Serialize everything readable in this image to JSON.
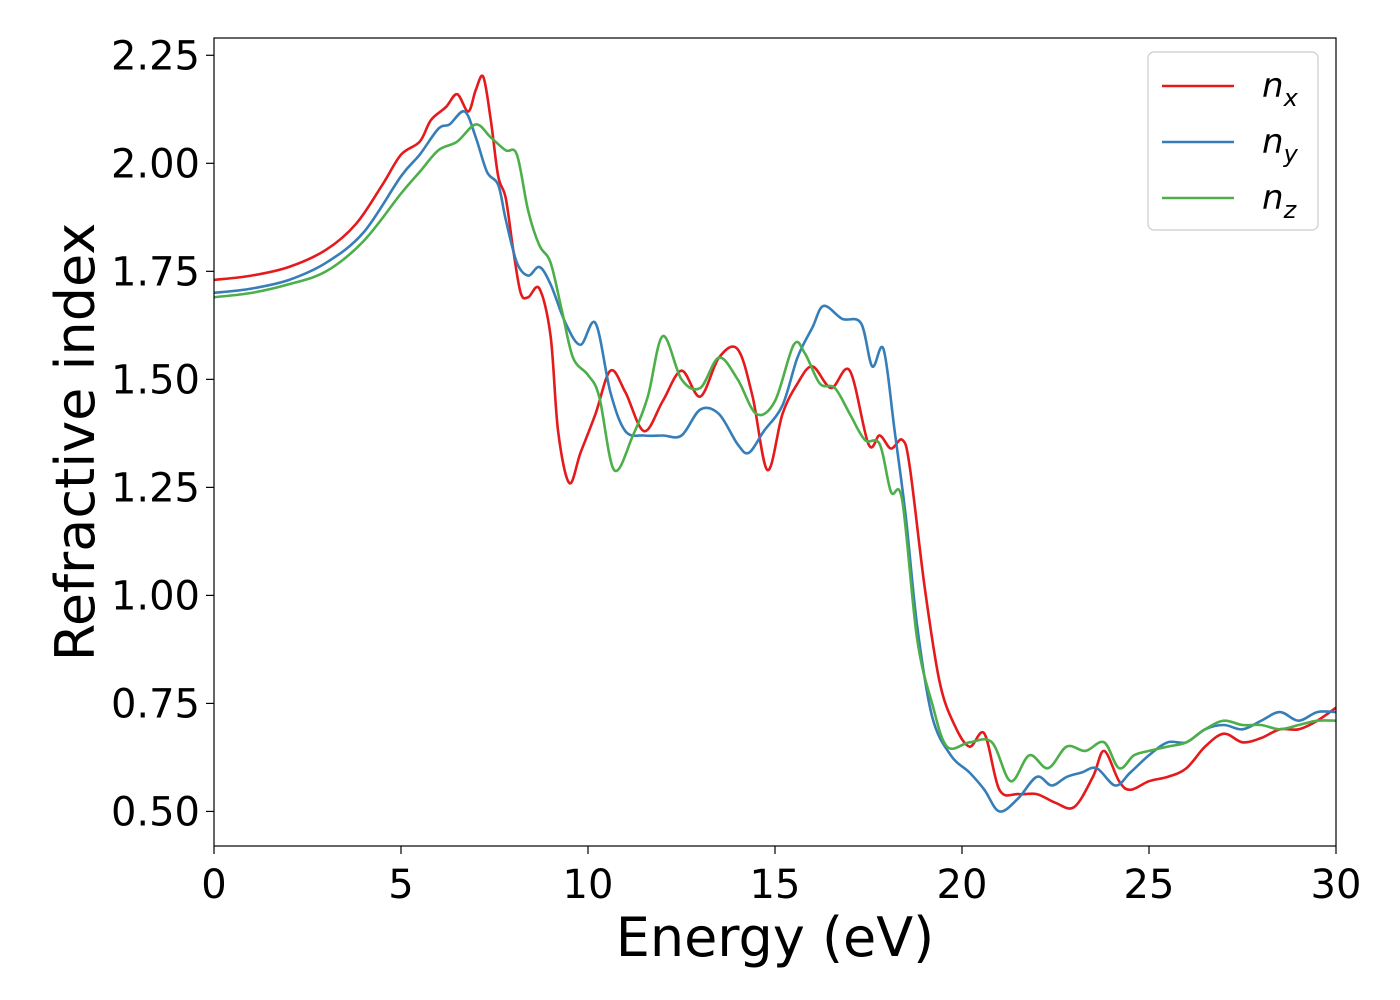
{
  "chart_data": {
    "type": "line",
    "title": "",
    "xlabel": "Energy (eV)",
    "ylabel": "Refractive index",
    "xlim": [
      0,
      30
    ],
    "ylim": [
      0.42,
      2.29
    ],
    "xticks": [
      0,
      5,
      10,
      15,
      20,
      25,
      30
    ],
    "xtick_labels": [
      "0",
      "5",
      "10",
      "15",
      "20",
      "25",
      "30"
    ],
    "yticks": [
      0.5,
      0.75,
      1.0,
      1.25,
      1.5,
      1.75,
      2.0,
      2.25
    ],
    "ytick_labels": [
      "0.50",
      "0.75",
      "1.00",
      "1.25",
      "1.50",
      "1.75",
      "2.00",
      "2.25"
    ],
    "grid": false,
    "legend_position": "top-right",
    "series": [
      {
        "name": "n_x",
        "legend_base": "n",
        "legend_sub": "x",
        "color": "#e41a1c",
        "points": [
          [
            0,
            1.73
          ],
          [
            1,
            1.74
          ],
          [
            2,
            1.76
          ],
          [
            3,
            1.8
          ],
          [
            3.8,
            1.86
          ],
          [
            4.5,
            1.95
          ],
          [
            5,
            2.02
          ],
          [
            5.5,
            2.05
          ],
          [
            5.8,
            2.1
          ],
          [
            6.2,
            2.13
          ],
          [
            6.5,
            2.16
          ],
          [
            6.8,
            2.12
          ],
          [
            7,
            2.17
          ],
          [
            7.2,
            2.2
          ],
          [
            7.4,
            2.1
          ],
          [
            7.6,
            1.97
          ],
          [
            7.8,
            1.92
          ],
          [
            8,
            1.8
          ],
          [
            8.2,
            1.7
          ],
          [
            8.4,
            1.69
          ],
          [
            8.7,
            1.71
          ],
          [
            9,
            1.6
          ],
          [
            9.2,
            1.38
          ],
          [
            9.5,
            1.26
          ],
          [
            9.8,
            1.33
          ],
          [
            10.2,
            1.42
          ],
          [
            10.6,
            1.52
          ],
          [
            11,
            1.47
          ],
          [
            11.5,
            1.38
          ],
          [
            12,
            1.45
          ],
          [
            12.5,
            1.52
          ],
          [
            13,
            1.46
          ],
          [
            13.5,
            1.55
          ],
          [
            14,
            1.57
          ],
          [
            14.4,
            1.46
          ],
          [
            14.8,
            1.29
          ],
          [
            15.2,
            1.42
          ],
          [
            15.6,
            1.49
          ],
          [
            16,
            1.53
          ],
          [
            16.5,
            1.48
          ],
          [
            17,
            1.52
          ],
          [
            17.5,
            1.35
          ],
          [
            17.8,
            1.37
          ],
          [
            18.1,
            1.34
          ],
          [
            18.4,
            1.36
          ],
          [
            18.6,
            1.3
          ],
          [
            19,
            1.02
          ],
          [
            19.4,
            0.8
          ],
          [
            19.8,
            0.7
          ],
          [
            20.2,
            0.65
          ],
          [
            20.6,
            0.68
          ],
          [
            21,
            0.55
          ],
          [
            21.5,
            0.54
          ],
          [
            22,
            0.54
          ],
          [
            22.5,
            0.52
          ],
          [
            23,
            0.51
          ],
          [
            23.5,
            0.58
          ],
          [
            23.8,
            0.64
          ],
          [
            24.2,
            0.57
          ],
          [
            24.5,
            0.55
          ],
          [
            25,
            0.57
          ],
          [
            25.5,
            0.58
          ],
          [
            26,
            0.6
          ],
          [
            26.5,
            0.65
          ],
          [
            27,
            0.68
          ],
          [
            27.5,
            0.66
          ],
          [
            28,
            0.67
          ],
          [
            28.5,
            0.69
          ],
          [
            29,
            0.69
          ],
          [
            29.5,
            0.71
          ],
          [
            30,
            0.74
          ]
        ]
      },
      {
        "name": "n_y",
        "legend_base": "n",
        "legend_sub": "y",
        "color": "#377eb8",
        "points": [
          [
            0,
            1.7
          ],
          [
            1,
            1.71
          ],
          [
            2,
            1.73
          ],
          [
            3,
            1.77
          ],
          [
            4,
            1.84
          ],
          [
            5,
            1.97
          ],
          [
            5.5,
            2.02
          ],
          [
            6,
            2.08
          ],
          [
            6.3,
            2.09
          ],
          [
            6.7,
            2.12
          ],
          [
            7,
            2.06
          ],
          [
            7.3,
            1.98
          ],
          [
            7.6,
            1.95
          ],
          [
            7.8,
            1.87
          ],
          [
            8.1,
            1.77
          ],
          [
            8.4,
            1.74
          ],
          [
            8.7,
            1.76
          ],
          [
            9,
            1.72
          ],
          [
            9.4,
            1.63
          ],
          [
            9.8,
            1.58
          ],
          [
            10.2,
            1.63
          ],
          [
            10.6,
            1.47
          ],
          [
            11,
            1.38
          ],
          [
            11.5,
            1.37
          ],
          [
            12,
            1.37
          ],
          [
            12.5,
            1.37
          ],
          [
            13,
            1.43
          ],
          [
            13.5,
            1.42
          ],
          [
            14,
            1.35
          ],
          [
            14.3,
            1.33
          ],
          [
            14.7,
            1.38
          ],
          [
            15.2,
            1.44
          ],
          [
            15.6,
            1.55
          ],
          [
            16,
            1.62
          ],
          [
            16.3,
            1.67
          ],
          [
            16.8,
            1.64
          ],
          [
            17.3,
            1.63
          ],
          [
            17.6,
            1.53
          ],
          [
            17.9,
            1.57
          ],
          [
            18.2,
            1.38
          ],
          [
            18.5,
            1.18
          ],
          [
            18.8,
            0.93
          ],
          [
            19.2,
            0.72
          ],
          [
            19.7,
            0.63
          ],
          [
            20.2,
            0.59
          ],
          [
            20.6,
            0.55
          ],
          [
            21,
            0.5
          ],
          [
            21.5,
            0.53
          ],
          [
            22,
            0.58
          ],
          [
            22.4,
            0.56
          ],
          [
            22.8,
            0.58
          ],
          [
            23.2,
            0.59
          ],
          [
            23.6,
            0.6
          ],
          [
            24.1,
            0.56
          ],
          [
            24.5,
            0.59
          ],
          [
            25,
            0.63
          ],
          [
            25.5,
            0.66
          ],
          [
            26,
            0.66
          ],
          [
            26.5,
            0.69
          ],
          [
            27,
            0.7
          ],
          [
            27.5,
            0.69
          ],
          [
            28,
            0.71
          ],
          [
            28.5,
            0.73
          ],
          [
            29,
            0.71
          ],
          [
            29.5,
            0.73
          ],
          [
            30,
            0.73
          ]
        ]
      },
      {
        "name": "n_z",
        "legend_base": "n",
        "legend_sub": "z",
        "color": "#4daf4a",
        "points": [
          [
            0,
            1.69
          ],
          [
            1,
            1.7
          ],
          [
            2,
            1.72
          ],
          [
            3,
            1.75
          ],
          [
            4,
            1.82
          ],
          [
            5,
            1.93
          ],
          [
            5.5,
            1.98
          ],
          [
            6,
            2.03
          ],
          [
            6.5,
            2.05
          ],
          [
            7,
            2.09
          ],
          [
            7.4,
            2.06
          ],
          [
            7.8,
            2.03
          ],
          [
            8.1,
            2.02
          ],
          [
            8.4,
            1.89
          ],
          [
            8.7,
            1.81
          ],
          [
            9,
            1.77
          ],
          [
            9.3,
            1.66
          ],
          [
            9.6,
            1.55
          ],
          [
            10,
            1.51
          ],
          [
            10.3,
            1.46
          ],
          [
            10.7,
            1.29
          ],
          [
            11.2,
            1.37
          ],
          [
            11.6,
            1.46
          ],
          [
            12,
            1.6
          ],
          [
            12.5,
            1.5
          ],
          [
            13,
            1.48
          ],
          [
            13.5,
            1.55
          ],
          [
            14,
            1.5
          ],
          [
            14.5,
            1.42
          ],
          [
            15,
            1.45
          ],
          [
            15.5,
            1.58
          ],
          [
            15.8,
            1.56
          ],
          [
            16.2,
            1.49
          ],
          [
            16.6,
            1.48
          ],
          [
            17,
            1.42
          ],
          [
            17.4,
            1.36
          ],
          [
            17.8,
            1.35
          ],
          [
            18.1,
            1.24
          ],
          [
            18.4,
            1.22
          ],
          [
            18.8,
            0.9
          ],
          [
            19.2,
            0.75
          ],
          [
            19.6,
            0.65
          ],
          [
            20.2,
            0.66
          ],
          [
            20.8,
            0.66
          ],
          [
            21.3,
            0.57
          ],
          [
            21.8,
            0.63
          ],
          [
            22.3,
            0.6
          ],
          [
            22.8,
            0.65
          ],
          [
            23.3,
            0.64
          ],
          [
            23.8,
            0.66
          ],
          [
            24.2,
            0.6
          ],
          [
            24.6,
            0.63
          ],
          [
            25,
            0.64
          ],
          [
            25.5,
            0.65
          ],
          [
            26,
            0.66
          ],
          [
            26.5,
            0.69
          ],
          [
            27,
            0.71
          ],
          [
            27.5,
            0.7
          ],
          [
            28,
            0.7
          ],
          [
            28.5,
            0.69
          ],
          [
            29,
            0.7
          ],
          [
            29.5,
            0.71
          ],
          [
            30,
            0.71
          ]
        ]
      }
    ]
  }
}
